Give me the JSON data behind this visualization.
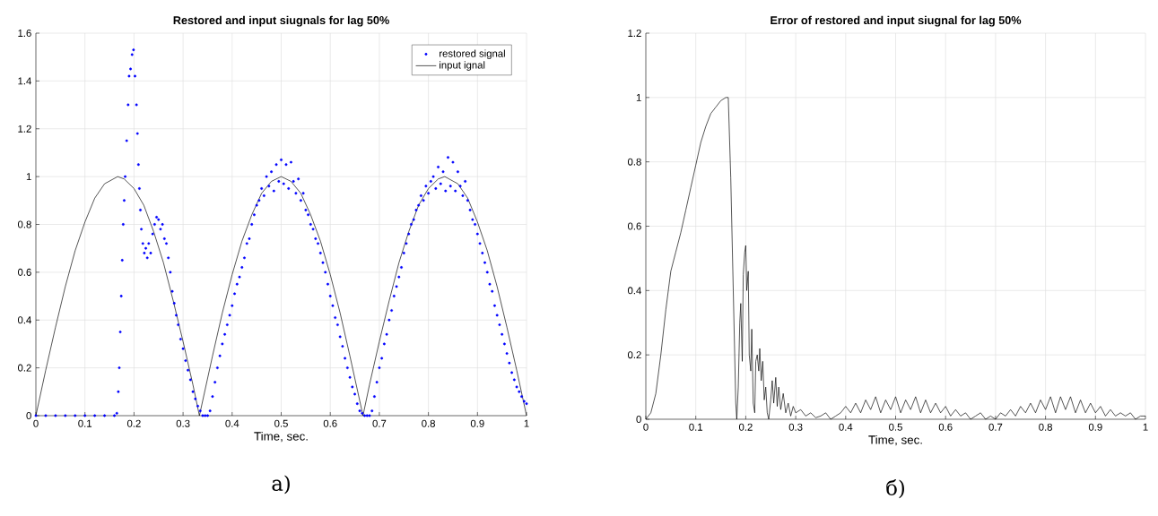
{
  "chart_data": [
    {
      "type": "line",
      "title": "Restored and input siugnals for lag 50%",
      "xlabel": "Time, sec.",
      "xlim": [
        0,
        1
      ],
      "xticks": [
        0,
        0.1,
        0.2,
        0.3,
        0.4,
        0.5,
        0.6,
        0.7,
        0.8,
        0.9,
        1
      ],
      "ylim": [
        0,
        1.6
      ],
      "yticks": [
        0,
        0.2,
        0.4,
        0.6,
        0.8,
        1,
        1.2,
        1.4,
        1.6
      ],
      "grid": true,
      "legend": "top right",
      "annotations": [
        "а)"
      ],
      "series": [
        {
          "name": "restored signal",
          "type": "scatter",
          "marker": "circle",
          "color": "#0000ff",
          "x": [
            0,
            0.02,
            0.04,
            0.06,
            0.08,
            0.1,
            0.12,
            0.14,
            0.16,
            0.165,
            0.168,
            0.17,
            0.172,
            0.174,
            0.176,
            0.178,
            0.18,
            0.182,
            0.185,
            0.188,
            0.19,
            0.193,
            0.196,
            0.199,
            0.202,
            0.205,
            0.207,
            0.209,
            0.211,
            0.213,
            0.215,
            0.218,
            0.221,
            0.224,
            0.227,
            0.23,
            0.234,
            0.238,
            0.242,
            0.246,
            0.25,
            0.254,
            0.258,
            0.262,
            0.266,
            0.27,
            0.274,
            0.278,
            0.282,
            0.286,
            0.29,
            0.295,
            0.3,
            0.305,
            0.31,
            0.315,
            0.32,
            0.325,
            0.33,
            0.335,
            0.34,
            0.345,
            0.35,
            0.355,
            0.36,
            0.365,
            0.37,
            0.375,
            0.38,
            0.385,
            0.39,
            0.395,
            0.4,
            0.405,
            0.41,
            0.415,
            0.42,
            0.425,
            0.43,
            0.435,
            0.44,
            0.445,
            0.45,
            0.455,
            0.46,
            0.465,
            0.47,
            0.475,
            0.48,
            0.485,
            0.49,
            0.495,
            0.5,
            0.505,
            0.51,
            0.515,
            0.52,
            0.525,
            0.53,
            0.535,
            0.54,
            0.545,
            0.55,
            0.555,
            0.56,
            0.565,
            0.57,
            0.575,
            0.58,
            0.585,
            0.59,
            0.595,
            0.6,
            0.605,
            0.61,
            0.615,
            0.62,
            0.625,
            0.63,
            0.635,
            0.64,
            0.645,
            0.65,
            0.655,
            0.66,
            0.665,
            0.67,
            0.675,
            0.68,
            0.685,
            0.69,
            0.695,
            0.7,
            0.705,
            0.71,
            0.715,
            0.72,
            0.725,
            0.73,
            0.735,
            0.74,
            0.745,
            0.75,
            0.755,
            0.76,
            0.765,
            0.77,
            0.775,
            0.78,
            0.785,
            0.79,
            0.795,
            0.8,
            0.805,
            0.81,
            0.815,
            0.82,
            0.825,
            0.83,
            0.835,
            0.84,
            0.845,
            0.85,
            0.855,
            0.86,
            0.865,
            0.87,
            0.875,
            0.88,
            0.885,
            0.89,
            0.895,
            0.9,
            0.905,
            0.91,
            0.915,
            0.92,
            0.925,
            0.93,
            0.935,
            0.94,
            0.945,
            0.95,
            0.955,
            0.96,
            0.965,
            0.97,
            0.975,
            0.98,
            0.985,
            0.99,
            0.995,
            1
          ],
          "values": [
            0,
            0,
            0,
            0,
            0,
            0,
            0,
            0,
            0,
            0.01,
            0.1,
            0.2,
            0.35,
            0.5,
            0.65,
            0.8,
            0.9,
            1.0,
            1.15,
            1.3,
            1.42,
            1.45,
            1.51,
            1.53,
            1.42,
            1.3,
            1.18,
            1.05,
            0.95,
            0.86,
            0.78,
            0.72,
            0.68,
            0.7,
            0.66,
            0.72,
            0.68,
            0.76,
            0.8,
            0.83,
            0.82,
            0.78,
            0.8,
            0.74,
            0.72,
            0.66,
            0.6,
            0.52,
            0.47,
            0.42,
            0.38,
            0.32,
            0.28,
            0.23,
            0.19,
            0.15,
            0.1,
            0.07,
            0.04,
            0.02,
            0,
            0,
            0,
            0.02,
            0.08,
            0.14,
            0.2,
            0.25,
            0.3,
            0.34,
            0.38,
            0.42,
            0.46,
            0.51,
            0.55,
            0.58,
            0.62,
            0.66,
            0.72,
            0.74,
            0.8,
            0.84,
            0.88,
            0.9,
            0.95,
            0.92,
            1.0,
            0.96,
            1.02,
            0.94,
            1.05,
            0.98,
            1.07,
            0.97,
            1.05,
            0.95,
            1.06,
            0.98,
            0.93,
            0.99,
            0.9,
            0.93,
            0.86,
            0.84,
            0.8,
            0.78,
            0.74,
            0.72,
            0.68,
            0.64,
            0.6,
            0.55,
            0.5,
            0.46,
            0.41,
            0.38,
            0.33,
            0.29,
            0.24,
            0.2,
            0.16,
            0.12,
            0.09,
            0.05,
            0.02,
            0.01,
            0,
            0,
            0,
            0.02,
            0.08,
            0.14,
            0.2,
            0.24,
            0.3,
            0.34,
            0.4,
            0.44,
            0.5,
            0.54,
            0.58,
            0.62,
            0.68,
            0.72,
            0.76,
            0.8,
            0.82,
            0.86,
            0.88,
            0.92,
            0.9,
            0.96,
            0.93,
            0.98,
            1.0,
            0.95,
            1.04,
            0.97,
            1.02,
            0.94,
            1.08,
            0.96,
            1.06,
            0.94,
            1.02,
            0.96,
            0.92,
            0.98,
            0.9,
            0.86,
            0.82,
            0.8,
            0.76,
            0.72,
            0.68,
            0.64,
            0.6,
            0.55,
            0.52,
            0.46,
            0.42,
            0.38,
            0.34,
            0.3,
            0.26,
            0.22,
            0.18,
            0.15,
            0.12,
            0.1,
            0.08,
            0.06,
            0.05
          ]
        },
        {
          "name": "input ignal",
          "color": "#000000",
          "x": [
            0,
            0.02,
            0.04,
            0.06,
            0.08,
            0.1,
            0.12,
            0.14,
            0.1667,
            0.18,
            0.2,
            0.22,
            0.24,
            0.26,
            0.28,
            0.3,
            0.32,
            0.3333,
            0.36,
            0.38,
            0.4,
            0.42,
            0.44,
            0.46,
            0.48,
            0.5,
            0.52,
            0.54,
            0.56,
            0.58,
            0.6,
            0.62,
            0.64,
            0.6667,
            0.68,
            0.7,
            0.72,
            0.74,
            0.76,
            0.78,
            0.8,
            0.82,
            0.8333,
            0.86,
            0.88,
            0.9,
            0.92,
            0.94,
            0.96,
            0.98,
            1
          ],
          "values": [
            0,
            0.19,
            0.37,
            0.54,
            0.69,
            0.81,
            0.91,
            0.97,
            1,
            0.99,
            0.95,
            0.88,
            0.77,
            0.64,
            0.48,
            0.31,
            0.13,
            0,
            0.25,
            0.43,
            0.59,
            0.73,
            0.84,
            0.93,
            0.98,
            1,
            0.98,
            0.93,
            0.84,
            0.73,
            0.59,
            0.43,
            0.25,
            0,
            0.13,
            0.31,
            0.48,
            0.64,
            0.77,
            0.88,
            0.95,
            0.99,
            1,
            0.97,
            0.91,
            0.81,
            0.69,
            0.54,
            0.37,
            0.19,
            0
          ]
        }
      ]
    },
    {
      "type": "line",
      "title": "Error of restored and input siugnal for lag 50%",
      "xlabel": "Time, sec.",
      "xlim": [
        0,
        1
      ],
      "xticks": [
        0,
        0.1,
        0.2,
        0.3,
        0.4,
        0.5,
        0.6,
        0.7,
        0.8,
        0.9,
        1
      ],
      "ylim": [
        0,
        1.2
      ],
      "yticks": [
        0,
        0.2,
        0.4,
        0.6,
        0.8,
        1,
        1.2
      ],
      "grid": true,
      "annotations": [
        "б)"
      ],
      "series": [
        {
          "color": "#000000",
          "x": [
            0,
            0.01,
            0.02,
            0.03,
            0.04,
            0.05,
            0.06,
            0.07,
            0.08,
            0.09,
            0.1,
            0.11,
            0.12,
            0.13,
            0.14,
            0.15,
            0.16,
            0.165,
            0.17,
            0.175,
            0.18,
            0.182,
            0.185,
            0.188,
            0.19,
            0.193,
            0.195,
            0.198,
            0.2,
            0.202,
            0.205,
            0.207,
            0.21,
            0.212,
            0.215,
            0.218,
            0.22,
            0.223,
            0.226,
            0.228,
            0.231,
            0.234,
            0.237,
            0.24,
            0.243,
            0.246,
            0.25,
            0.253,
            0.256,
            0.26,
            0.263,
            0.266,
            0.27,
            0.275,
            0.28,
            0.285,
            0.29,
            0.295,
            0.3,
            0.31,
            0.32,
            0.33,
            0.34,
            0.35,
            0.36,
            0.37,
            0.38,
            0.39,
            0.4,
            0.41,
            0.42,
            0.43,
            0.44,
            0.45,
            0.46,
            0.47,
            0.48,
            0.49,
            0.5,
            0.51,
            0.52,
            0.53,
            0.54,
            0.55,
            0.56,
            0.57,
            0.58,
            0.59,
            0.6,
            0.61,
            0.62,
            0.63,
            0.64,
            0.65,
            0.66,
            0.67,
            0.68,
            0.69,
            0.7,
            0.71,
            0.72,
            0.73,
            0.74,
            0.75,
            0.76,
            0.77,
            0.78,
            0.79,
            0.8,
            0.81,
            0.82,
            0.83,
            0.84,
            0.85,
            0.86,
            0.87,
            0.88,
            0.89,
            0.9,
            0.91,
            0.92,
            0.93,
            0.94,
            0.95,
            0.96,
            0.97,
            0.98,
            0.99,
            1
          ],
          "values": [
            0,
            0.02,
            0.08,
            0.2,
            0.34,
            0.46,
            0.52,
            0.58,
            0.65,
            0.72,
            0.79,
            0.86,
            0.91,
            0.95,
            0.97,
            0.99,
            1.0,
            1.0,
            0.75,
            0.4,
            0.05,
            0,
            0.1,
            0.3,
            0.36,
            0.18,
            0.45,
            0.52,
            0.54,
            0.4,
            0.46,
            0.2,
            0.15,
            0.28,
            0.05,
            0.02,
            0.18,
            0.2,
            0.15,
            0.22,
            0.12,
            0.18,
            0.06,
            0.1,
            0.02,
            0,
            0.06,
            0.12,
            0.05,
            0.13,
            0.04,
            0.1,
            0.03,
            0.08,
            0.02,
            0.05,
            0.01,
            0.04,
            0.02,
            0.03,
            0.01,
            0.02,
            0.005,
            0.01,
            0.02,
            0,
            0.01,
            0.02,
            0.04,
            0.02,
            0.05,
            0.02,
            0.06,
            0.03,
            0.07,
            0.02,
            0.06,
            0.03,
            0.07,
            0.02,
            0.06,
            0.03,
            0.07,
            0.02,
            0.06,
            0.02,
            0.05,
            0.02,
            0.04,
            0.01,
            0.03,
            0.01,
            0.02,
            0,
            0.01,
            0.02,
            0,
            0.01,
            0,
            0.02,
            0.01,
            0.03,
            0.01,
            0.04,
            0.02,
            0.05,
            0.02,
            0.06,
            0.03,
            0.07,
            0.02,
            0.07,
            0.03,
            0.07,
            0.02,
            0.06,
            0.02,
            0.05,
            0.02,
            0.04,
            0.01,
            0.03,
            0.01,
            0.02,
            0.01,
            0.02,
            0,
            0.01,
            0.01
          ]
        }
      ]
    }
  ]
}
